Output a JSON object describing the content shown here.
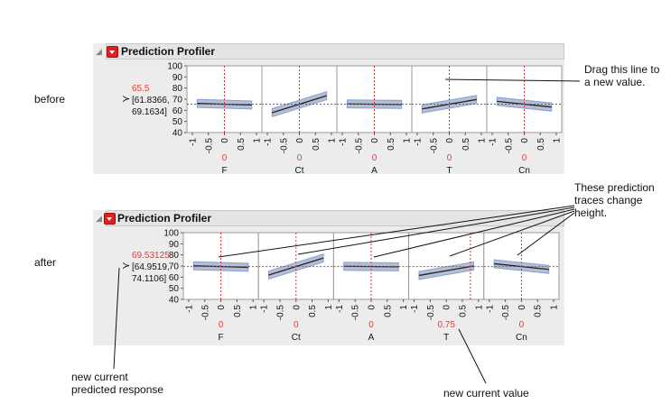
{
  "panels": [
    {
      "state_label": "before",
      "title": "Prediction Profiler",
      "prediction": {
        "value": "65.5",
        "ci_low": "[61.8366,",
        "ci_high": "69.1634]"
      },
      "y_ticks": [
        "100",
        "90",
        "80",
        "70",
        "60",
        "50",
        "40"
      ],
      "x_ticks": [
        "-1",
        "-0.5",
        "0",
        "0.5",
        "1"
      ],
      "factors": [
        {
          "name": "F",
          "current": "0",
          "current_x": 0,
          "slope": -0.8
        },
        {
          "name": "Ct",
          "current": "0",
          "current_x": 0,
          "slope": 9.0
        },
        {
          "name": "A",
          "current": "0",
          "current_x": 0,
          "slope": -0.3
        },
        {
          "name": "T",
          "current": "0",
          "current_x": 0,
          "slope": 5.0
        },
        {
          "name": "Cn",
          "current": "0",
          "current_x": 0,
          "slope": -3.0
        }
      ],
      "current_y": 65.5
    },
    {
      "state_label": "after",
      "title": "Prediction Profiler",
      "prediction": {
        "value": "69.53125",
        "ci_low": "[64.9519,",
        "ci_high": "74.1106]"
      },
      "y_ticks": [
        "100",
        "90",
        "80",
        "70",
        "60",
        "50",
        "40"
      ],
      "x_ticks": [
        "-1",
        "-0.5",
        "0",
        "0.5",
        "1"
      ],
      "factors": [
        {
          "name": "F",
          "current": "0",
          "current_x": 0,
          "slope": -0.8
        },
        {
          "name": "Ct",
          "current": "0",
          "current_x": 0,
          "slope": 9.0
        },
        {
          "name": "A",
          "current": "0",
          "current_x": 0,
          "slope": -0.3
        },
        {
          "name": "T",
          "current": "0.75",
          "current_x": 0.75,
          "slope": 5.0
        },
        {
          "name": "Cn",
          "current": "0",
          "current_x": 0,
          "slope": -3.0
        }
      ],
      "current_y": 69.53125
    }
  ],
  "annotations": {
    "drag_line": [
      "Drag this line to",
      "a new value."
    ],
    "traces_change": [
      "These prediction",
      "traces change",
      "height."
    ],
    "new_predicted": [
      "new current",
      "predicted response"
    ],
    "new_value": "new current value"
  },
  "colors": {
    "trace": "#222222",
    "band": "#a9b4c9",
    "band_edge": "#6f8fd6",
    "crosshair": "#e03030",
    "current_text": "#e0403a",
    "cell_bg": "#ffffff"
  },
  "axis": {
    "y_min": 40,
    "y_max": 100,
    "x_min": -1,
    "x_max": 1
  }
}
